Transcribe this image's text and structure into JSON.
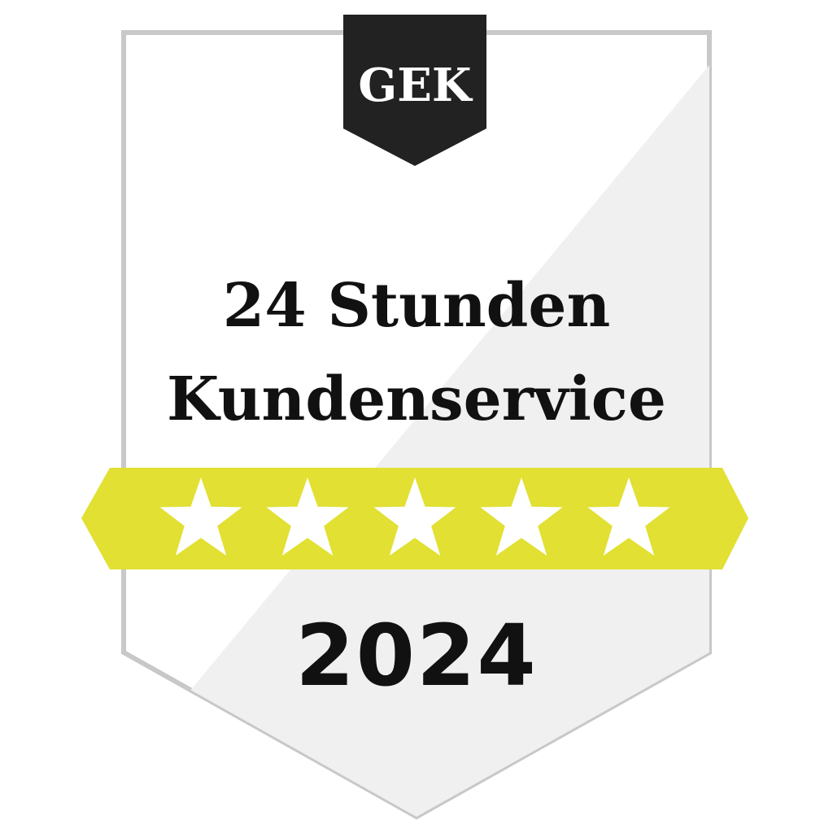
{
  "badge": {
    "tab_label": "GEK",
    "title_line1": "24 Stunden",
    "title_line2": "Kundenservice",
    "year": "2024",
    "rating": {
      "stars_filled": 5,
      "stars_total": 5
    }
  },
  "colors": {
    "shield_border": "#c8c8c8",
    "shield_fill": "#ffffff",
    "shield_shade": "#f0f0f0",
    "tab_fill": "#222222",
    "tab_text": "#ffffff",
    "ribbon": "#e1e033",
    "star": "#ffffff",
    "text": "#111111"
  },
  "icons": {
    "star": "star-icon"
  }
}
